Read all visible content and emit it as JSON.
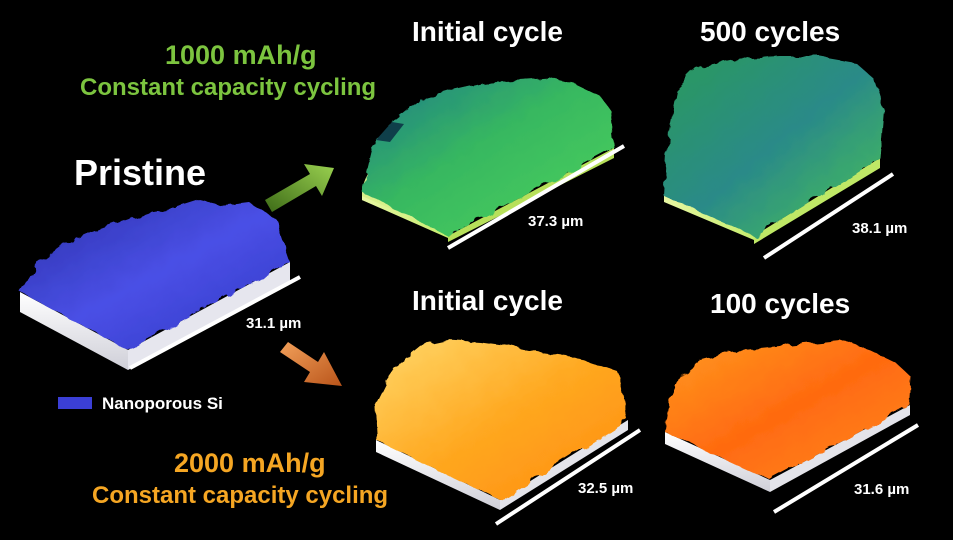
{
  "pristine": {
    "title": "Pristine",
    "scale": "31.1 µm",
    "legend_label": "Nanoporous Si"
  },
  "group_1000": {
    "capacity": "1000 mAh/g",
    "mode": "Constant capacity cycling",
    "initial": {
      "title": "Initial cycle",
      "scale": "37.3 µm"
    },
    "later": {
      "title": "500 cycles",
      "scale": "38.1 µm"
    }
  },
  "group_2000": {
    "capacity": "2000 mAh/g",
    "mode": "Constant capacity cycling",
    "initial": {
      "title": "Initial cycle",
      "scale": "32.5 µm"
    },
    "later": {
      "title": "100 cycles",
      "scale": "31.6 µm"
    }
  },
  "colors": {
    "background": "#000000",
    "pristine_blue": "#3b3fd6",
    "green_label": "#7cc43f",
    "orange_label": "#f5a623",
    "arrow_green": "#6bab2e",
    "arrow_orange": "#e0782a"
  }
}
